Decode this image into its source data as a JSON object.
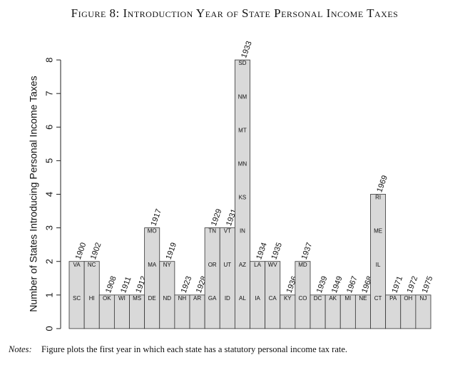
{
  "chart_data": {
    "type": "bar",
    "title": "Figure 8: Introduction Year of State Personal Income Taxes",
    "y_label": "Number of States Introducing Personal Income Taxes",
    "notes_label": "Notes:",
    "notes": "Figure plots the first year in which each state has a statutory personal income tax rate.",
    "categories": [
      "1900",
      "1902",
      "1908",
      "1911",
      "1912",
      "1917",
      "1919",
      "1923",
      "1928",
      "1929",
      "1931",
      "1933",
      "1934",
      "1935",
      "1936",
      "1937",
      "1939",
      "1949",
      "1967",
      "1968",
      "1969",
      "1971",
      "1972",
      "1975"
    ],
    "values": [
      2,
      2,
      1,
      1,
      1,
      3,
      2,
      1,
      1,
      3,
      3,
      8,
      2,
      2,
      1,
      2,
      1,
      1,
      1,
      1,
      4,
      1,
      1,
      1
    ],
    "states": [
      [
        "SC",
        "VA"
      ],
      [
        "HI",
        "NC"
      ],
      [
        "OK"
      ],
      [
        "WI"
      ],
      [
        "MS"
      ],
      [
        "DE",
        "MA",
        "MO"
      ],
      [
        "ND",
        "NY"
      ],
      [
        "NH"
      ],
      [
        "AR"
      ],
      [
        "GA",
        "OR",
        "TN"
      ],
      [
        "ID",
        "UT",
        "VT"
      ],
      [
        "AL",
        "AZ",
        "IN",
        "KS",
        "MN",
        "MT",
        "NM",
        "SD"
      ],
      [
        "IA",
        "LA"
      ],
      [
        "CA",
        "WV"
      ],
      [
        "KY"
      ],
      [
        "CO",
        "MD"
      ],
      [
        "DC"
      ],
      [
        "AK"
      ],
      [
        "MI"
      ],
      [
        "NE"
      ],
      [
        "CT",
        "IL",
        "ME",
        "RI"
      ],
      [
        "PA"
      ],
      [
        "OH"
      ],
      [
        "NJ"
      ]
    ],
    "color": "#d9d9d9",
    "ylim": [
      -0.32,
      8.32
    ],
    "yticks": [
      0,
      1,
      2,
      3,
      4,
      5,
      6,
      7,
      8
    ]
  }
}
